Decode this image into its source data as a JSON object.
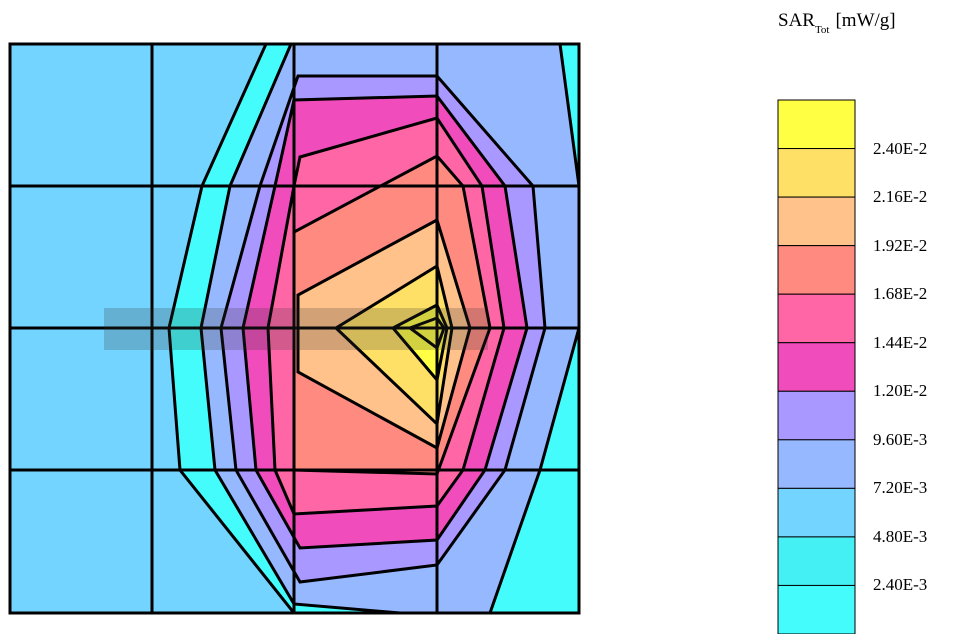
{
  "chart_data": {
    "type": "contour",
    "colorbar": {
      "title_main": "SAR",
      "title_sub": "Tot",
      "unit": "[mW/g]",
      "levels": [
        "2.40E-2",
        "2.16E-2",
        "1.92E-2",
        "1.68E-2",
        "1.44E-2",
        "1.20E-2",
        "9.60E-3",
        "7.20E-3",
        "4.80E-3",
        "2.40E-3"
      ],
      "level_values": [
        0.024,
        0.0216,
        0.0192,
        0.0168,
        0.0144,
        0.012,
        0.0096,
        0.0072,
        0.0048,
        0.0024
      ],
      "band_colors_top_to_bottom": [
        "#ffff44",
        "#ffe066",
        "#ffc28a",
        "#ff8a80",
        "#ff66a6",
        "#f04cbc",
        "#a898ff",
        "#96b8ff",
        "#72d4ff",
        "#44f0f4",
        "#44fcfc"
      ]
    },
    "contour_band_colors": [
      "#44fcfc",
      "#44f0f4",
      "#72d4ff",
      "#96b8ff",
      "#a898ff",
      "#f04cbc",
      "#ff66a6",
      "#ff8a80",
      "#ffc28a",
      "#ffe066",
      "#ffff44"
    ],
    "grid": {
      "columns": 4,
      "rows": 4
    },
    "peak_region": "upper-right of center"
  }
}
